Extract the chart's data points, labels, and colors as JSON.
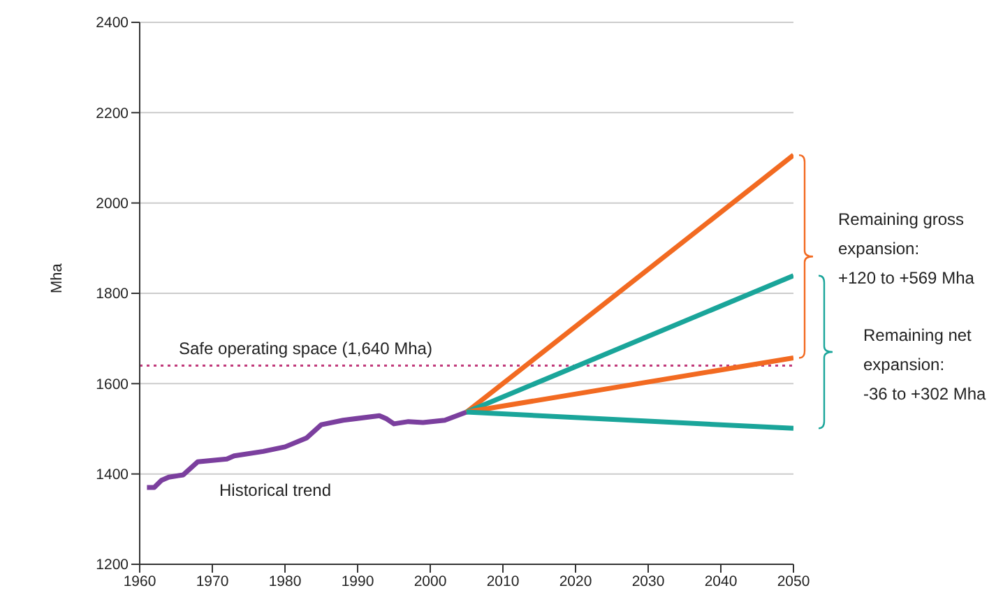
{
  "chart_data": {
    "type": "line",
    "ylabel": "Mha",
    "xlim": [
      1960,
      2050
    ],
    "xticks": [
      1960,
      1970,
      1980,
      1990,
      2000,
      2010,
      2020,
      2030,
      2040,
      2050
    ],
    "ylim": [
      1200,
      2400
    ],
    "yticks": [
      1200,
      1400,
      1600,
      1800,
      2000,
      2200,
      2400
    ],
    "grid": "y",
    "marker": "none",
    "line_style": "solid",
    "series": [
      {
        "color": "#7b3f9e",
        "x": [
          1961,
          1962,
          1963,
          1964,
          1966,
          1968,
          1972,
          1973,
          1977,
          1980,
          1983,
          1985,
          1988,
          1993,
          1994,
          1995,
          1997,
          1999,
          2002,
          2005
        ],
        "values": [
          1370,
          1370,
          1386,
          1393,
          1398,
          1427,
          1433,
          1440,
          1450,
          1460,
          1480,
          1509,
          1519,
          1529,
          1522,
          1511,
          1516,
          1514,
          1519,
          1537
        ]
      },
      {
        "color": "#f26a21",
        "x": [
          2005,
          2050
        ],
        "values": [
          1537,
          2106
        ]
      },
      {
        "color": "#1aa59a",
        "x": [
          2005,
          2050
        ],
        "values": [
          1537,
          1839
        ]
      },
      {
        "color": "#f26a21",
        "x": [
          2005,
          2050
        ],
        "values": [
          1537,
          1657
        ]
      },
      {
        "color": "#1aa59a",
        "x": [
          2005,
          2050
        ],
        "values": [
          1537,
          1501
        ]
      }
    ],
    "ref_lines": [
      {
        "axis": "y",
        "value": 1640,
        "label": "Safe operating space (1,640 Mha)",
        "color": "#c0397a",
        "line_style": "dotted"
      }
    ],
    "annotations": [
      "Historical trend",
      "Remaining gross expansion: +120 to +569 Mha",
      "Remaining net expansion: -36 to +302 Mha"
    ]
  }
}
